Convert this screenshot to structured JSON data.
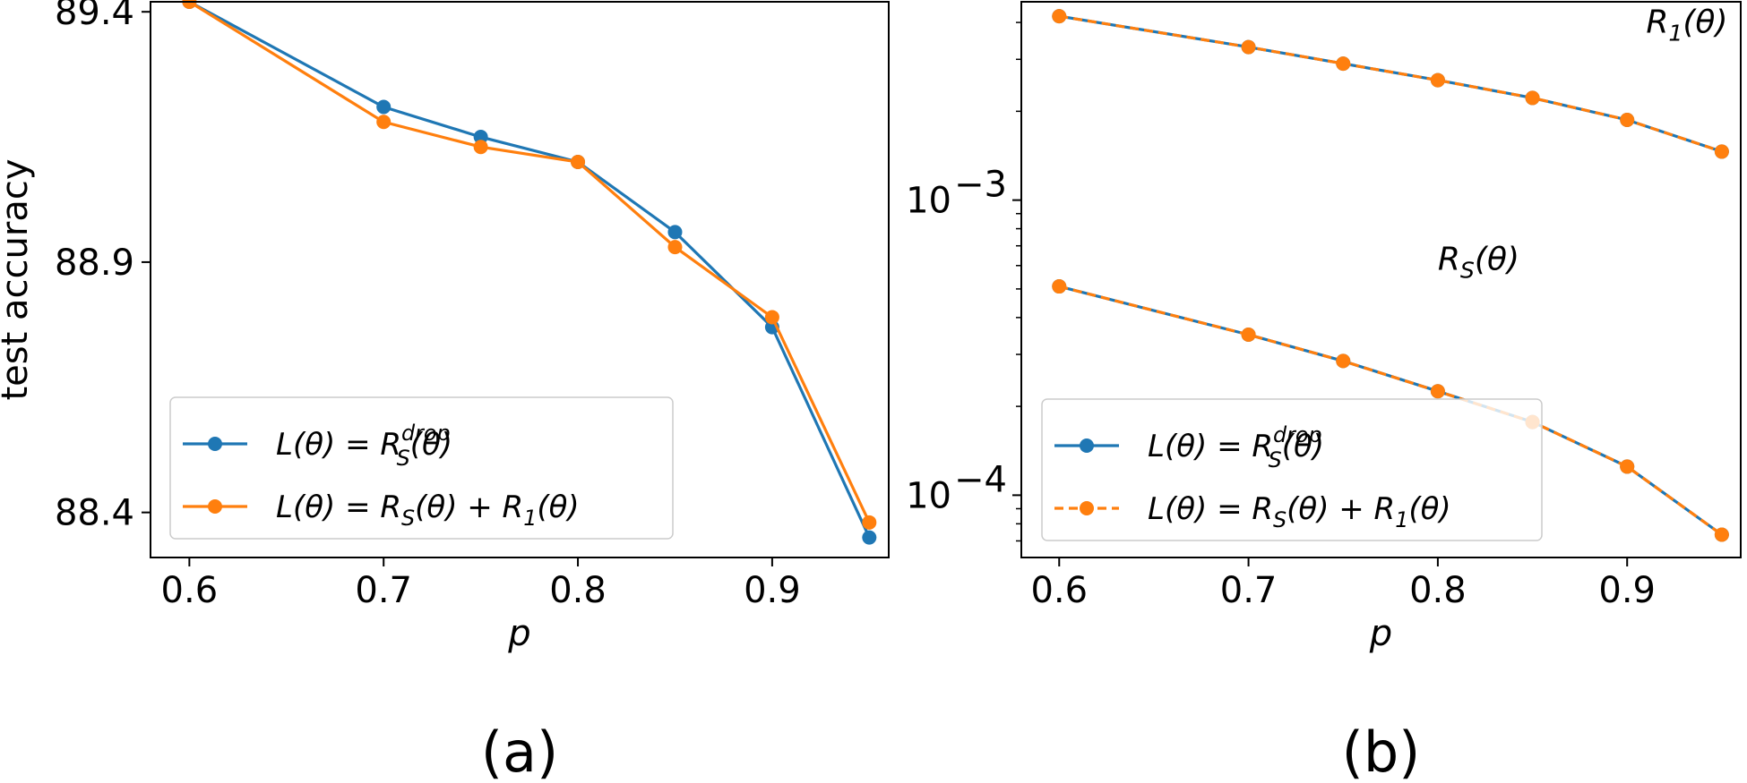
{
  "colors": {
    "series_a": "#1f77b4",
    "series_b": "#ff7f0e"
  },
  "chart_data": [
    {
      "panel_label": "(a)",
      "type": "line",
      "xlabel": "p",
      "ylabel": "test accuracy",
      "xlim": [
        0.58,
        0.96
      ],
      "ylim": [
        88.31,
        89.42
      ],
      "x_ticks": [
        "0.6",
        "0.7",
        "0.8",
        "0.9"
      ],
      "x_tick_values": [
        0.6,
        0.7,
        0.8,
        0.9
      ],
      "y_ticks": [
        "88.4",
        "88.9",
        "89.4"
      ],
      "y_tick_values": [
        88.4,
        88.9,
        89.4
      ],
      "legend_position": "lower-left",
      "x": [
        0.6,
        0.7,
        0.75,
        0.8,
        0.85,
        0.9,
        0.95
      ],
      "series": [
        {
          "name": "L(θ) = R_S^drop(θ)",
          "legend": {
            "lhs": "L(θ) = R",
            "sub": "S",
            "sup": "drop",
            "rhs": "(θ)"
          },
          "style": "solid",
          "values": [
            89.42,
            89.21,
            89.15,
            89.1,
            88.96,
            88.77,
            88.35
          ]
        },
        {
          "name": "L(θ) = R_S(θ) + R_1(θ)",
          "legend": {
            "lhs": "L(θ) = R",
            "sub": "S",
            "mid": "(θ) + R",
            "sub2": "1",
            "rhs": "(θ)"
          },
          "style": "solid",
          "values": [
            89.42,
            89.18,
            89.13,
            89.1,
            88.93,
            88.79,
            88.38
          ]
        }
      ]
    },
    {
      "panel_label": "(b)",
      "type": "line",
      "xlabel": "p",
      "ylabel": "",
      "yscale": "log",
      "xlim": [
        0.58,
        0.96
      ],
      "ylim": [
        6.15e-05,
        0.0047
      ],
      "x_ticks": [
        "0.6",
        "0.7",
        "0.8",
        "0.9"
      ],
      "x_tick_values": [
        0.6,
        0.7,
        0.8,
        0.9
      ],
      "y_ticks": [
        {
          "base": "10",
          "exp": "−3",
          "value": 0.001
        },
        {
          "base": "10",
          "exp": "−4",
          "value": 0.0001
        }
      ],
      "annotations": [
        {
          "text": "R",
          "sub": "1",
          "rest": "(θ)",
          "x": 0.91,
          "y": 0.0037
        },
        {
          "text": "R",
          "sub": "S",
          "rest": "(θ)",
          "x": 0.8,
          "y": 0.00058
        }
      ],
      "legend_position": "lower-left",
      "x": [
        0.6,
        0.7,
        0.75,
        0.8,
        0.85,
        0.9,
        0.95
      ],
      "series": [
        {
          "name": "L(θ) = R_S^drop(θ)",
          "group": "R_1",
          "style": "solid",
          "values": [
            0.0042,
            0.0033,
            0.0029,
            0.00255,
            0.00222,
            0.00187,
            0.00146
          ]
        },
        {
          "name": "L(θ) = R_S(θ) + R_1(θ)",
          "group": "R_1",
          "style": "dashed",
          "values": [
            0.0042,
            0.0033,
            0.0029,
            0.00255,
            0.00222,
            0.00187,
            0.00146
          ]
        },
        {
          "name": "L(θ) = R_S^drop(θ)",
          "group": "R_S",
          "style": "solid",
          "values": [
            0.00051,
            0.00035,
            0.000285,
            0.000225,
            0.000177,
            0.000125,
            7.35e-05
          ]
        },
        {
          "name": "L(θ) = R_S(θ) + R_1(θ)",
          "group": "R_S",
          "style": "dashed",
          "values": [
            0.00051,
            0.00035,
            0.000285,
            0.000225,
            0.000177,
            0.000125,
            7.35e-05
          ]
        }
      ],
      "legend": [
        {
          "lhs": "L(θ) = R",
          "sub": "S",
          "sup": "drop",
          "rhs": "(θ)",
          "style": "solid"
        },
        {
          "lhs": "L(θ) = R",
          "sub": "S",
          "mid": "(θ) + R",
          "sub2": "1",
          "rhs": "(θ)",
          "style": "dashed"
        }
      ]
    }
  ]
}
